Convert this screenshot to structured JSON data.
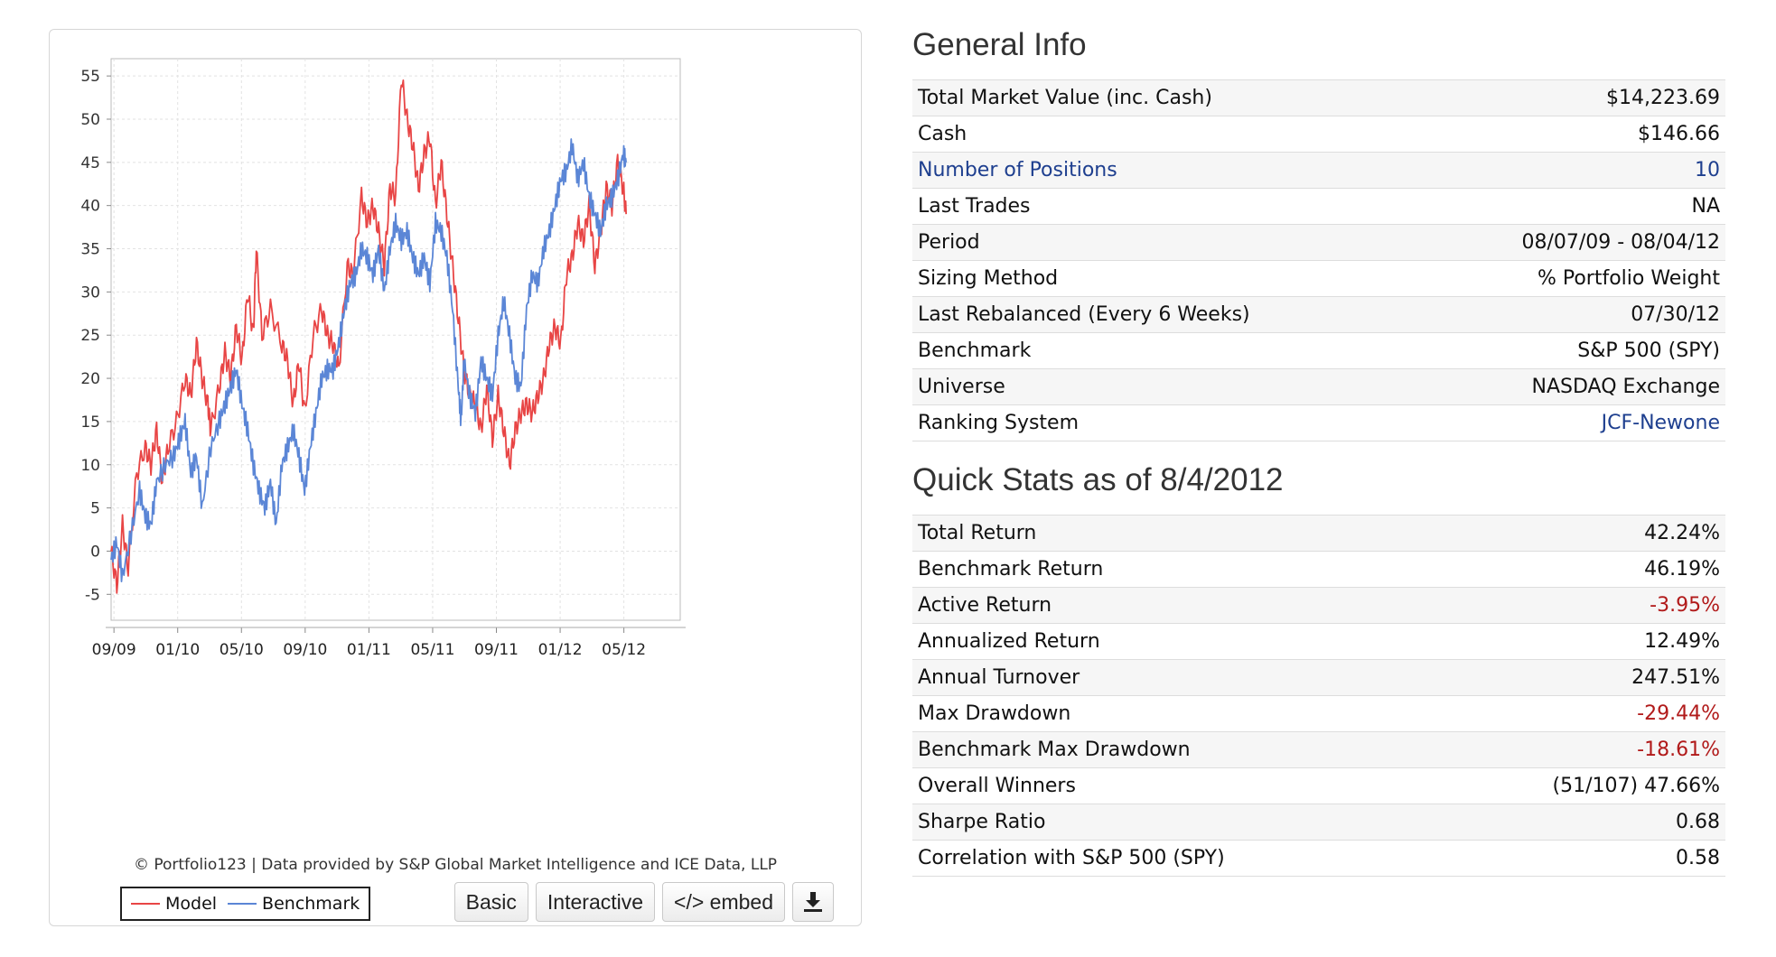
{
  "chart_panel": {
    "credit": "© Portfolio123 | Data provided by S&P Global Market Intelligence and ICE Data, LLP",
    "legend": {
      "model_label": "Model",
      "benchmark_label": "Benchmark"
    },
    "buttons": {
      "basic": "Basic",
      "interactive": "Interactive",
      "embed": "</> embed",
      "download_icon": "download-icon"
    }
  },
  "chart_data": {
    "type": "line",
    "x_tick_labels": [
      "09/09",
      "01/10",
      "05/10",
      "09/10",
      "01/11",
      "05/11",
      "09/11",
      "01/12",
      "05/12"
    ],
    "y_ticks": [
      55,
      50,
      45,
      40,
      35,
      30,
      25,
      20,
      15,
      10,
      5,
      0,
      -5
    ],
    "ylim": [
      -8,
      57
    ],
    "x_range": [
      "08/07/09",
      "08/04/12"
    ],
    "grid": true,
    "legend_position": "bottom-left",
    "series": [
      {
        "name": "Model",
        "color": "#e84545",
        "points": [
          [
            0,
            0
          ],
          [
            0.01,
            -4
          ],
          [
            0.02,
            3
          ],
          [
            0.03,
            -2
          ],
          [
            0.045,
            9
          ],
          [
            0.06,
            12
          ],
          [
            0.07,
            10
          ],
          [
            0.08,
            14
          ],
          [
            0.09,
            8
          ],
          [
            0.1,
            12
          ],
          [
            0.115,
            15
          ],
          [
            0.13,
            20
          ],
          [
            0.14,
            18
          ],
          [
            0.15,
            24
          ],
          [
            0.16,
            20
          ],
          [
            0.17,
            17
          ],
          [
            0.175,
            14
          ],
          [
            0.19,
            19
          ],
          [
            0.2,
            23
          ],
          [
            0.21,
            20
          ],
          [
            0.22,
            26
          ],
          [
            0.23,
            22
          ],
          [
            0.24,
            30
          ],
          [
            0.25,
            25
          ],
          [
            0.255,
            35
          ],
          [
            0.265,
            25
          ],
          [
            0.28,
            28
          ],
          [
            0.3,
            24
          ],
          [
            0.31,
            22
          ],
          [
            0.32,
            17
          ],
          [
            0.33,
            22
          ],
          [
            0.34,
            16
          ],
          [
            0.355,
            25
          ],
          [
            0.37,
            28
          ],
          [
            0.38,
            25
          ],
          [
            0.39,
            24
          ],
          [
            0.4,
            21
          ],
          [
            0.415,
            33
          ],
          [
            0.425,
            32
          ],
          [
            0.44,
            41
          ],
          [
            0.45,
            38
          ],
          [
            0.46,
            40
          ],
          [
            0.47,
            37
          ],
          [
            0.48,
            33
          ],
          [
            0.49,
            42
          ],
          [
            0.5,
            41
          ],
          [
            0.51,
            55
          ],
          [
            0.52,
            50
          ],
          [
            0.53,
            47
          ],
          [
            0.54,
            42
          ],
          [
            0.55,
            46
          ],
          [
            0.56,
            48
          ],
          [
            0.57,
            40
          ],
          [
            0.58,
            45
          ],
          [
            0.59,
            39
          ],
          [
            0.6,
            33
          ],
          [
            0.61,
            27
          ],
          [
            0.62,
            21
          ],
          [
            0.63,
            18
          ],
          [
            0.64,
            17
          ],
          [
            0.65,
            14
          ],
          [
            0.66,
            19
          ],
          [
            0.67,
            13
          ],
          [
            0.68,
            18
          ],
          [
            0.69,
            14
          ],
          [
            0.7,
            10
          ],
          [
            0.71,
            14
          ],
          [
            0.72,
            16
          ],
          [
            0.73,
            17
          ],
          [
            0.74,
            16
          ],
          [
            0.75,
            18
          ],
          [
            0.76,
            20
          ],
          [
            0.77,
            24
          ],
          [
            0.78,
            26
          ],
          [
            0.79,
            24
          ],
          [
            0.8,
            32
          ],
          [
            0.81,
            34
          ],
          [
            0.82,
            38
          ],
          [
            0.83,
            36
          ],
          [
            0.84,
            40
          ],
          [
            0.85,
            33
          ],
          [
            0.86,
            37
          ],
          [
            0.87,
            42
          ],
          [
            0.88,
            40
          ],
          [
            0.89,
            45
          ],
          [
            0.9,
            42
          ],
          [
            0.905,
            39
          ]
        ]
      },
      {
        "name": "Benchmark",
        "color": "#5b86d6",
        "points": [
          [
            0,
            -1
          ],
          [
            0.01,
            1
          ],
          [
            0.02,
            -3
          ],
          [
            0.035,
            2
          ],
          [
            0.05,
            7
          ],
          [
            0.06,
            4
          ],
          [
            0.07,
            3
          ],
          [
            0.08,
            8
          ],
          [
            0.095,
            10
          ],
          [
            0.11,
            11
          ],
          [
            0.12,
            13
          ],
          [
            0.13,
            15
          ],
          [
            0.14,
            9
          ],
          [
            0.15,
            11
          ],
          [
            0.16,
            5
          ],
          [
            0.175,
            12
          ],
          [
            0.19,
            15
          ],
          [
            0.2,
            17
          ],
          [
            0.21,
            19
          ],
          [
            0.22,
            21
          ],
          [
            0.23,
            17
          ],
          [
            0.24,
            14
          ],
          [
            0.25,
            10
          ],
          [
            0.26,
            7
          ],
          [
            0.27,
            5
          ],
          [
            0.28,
            8
          ],
          [
            0.29,
            3
          ],
          [
            0.3,
            10
          ],
          [
            0.31,
            12
          ],
          [
            0.32,
            14
          ],
          [
            0.33,
            11
          ],
          [
            0.34,
            7
          ],
          [
            0.35,
            12
          ],
          [
            0.36,
            16
          ],
          [
            0.37,
            20
          ],
          [
            0.38,
            21
          ],
          [
            0.39,
            21
          ],
          [
            0.4,
            24
          ],
          [
            0.41,
            28
          ],
          [
            0.42,
            31
          ],
          [
            0.43,
            32
          ],
          [
            0.44,
            35
          ],
          [
            0.45,
            34
          ],
          [
            0.46,
            32
          ],
          [
            0.47,
            35
          ],
          [
            0.48,
            30
          ],
          [
            0.49,
            35
          ],
          [
            0.5,
            38
          ],
          [
            0.51,
            36
          ],
          [
            0.52,
            37
          ],
          [
            0.53,
            34
          ],
          [
            0.54,
            32
          ],
          [
            0.55,
            34
          ],
          [
            0.56,
            31
          ],
          [
            0.57,
            38
          ],
          [
            0.58,
            37
          ],
          [
            0.59,
            34
          ],
          [
            0.6,
            28
          ],
          [
            0.61,
            19
          ],
          [
            0.615,
            15
          ],
          [
            0.62,
            22
          ],
          [
            0.63,
            18
          ],
          [
            0.64,
            16
          ],
          [
            0.65,
            22
          ],
          [
            0.66,
            20
          ],
          [
            0.67,
            18
          ],
          [
            0.68,
            25
          ],
          [
            0.69,
            29
          ],
          [
            0.7,
            25
          ],
          [
            0.71,
            20
          ],
          [
            0.72,
            19
          ],
          [
            0.73,
            28
          ],
          [
            0.74,
            32
          ],
          [
            0.75,
            31
          ],
          [
            0.76,
            35
          ],
          [
            0.77,
            37
          ],
          [
            0.78,
            40
          ],
          [
            0.79,
            43
          ],
          [
            0.8,
            44
          ],
          [
            0.81,
            47
          ],
          [
            0.82,
            43
          ],
          [
            0.83,
            45
          ],
          [
            0.84,
            41
          ],
          [
            0.85,
            39
          ],
          [
            0.86,
            37
          ],
          [
            0.87,
            40
          ],
          [
            0.88,
            41
          ],
          [
            0.89,
            43
          ],
          [
            0.9,
            46
          ],
          [
            0.905,
            45
          ]
        ]
      }
    ]
  },
  "general_info": {
    "title": "General Info",
    "rows": [
      {
        "label": "Total Market Value (inc. Cash)",
        "value": "$14,223.69"
      },
      {
        "label": "Cash",
        "value": "$146.66"
      },
      {
        "label": "Number of Positions",
        "value": "10",
        "link": true
      },
      {
        "label": "Last Trades",
        "value": "NA"
      },
      {
        "label": "Period",
        "value": "08/07/09 - 08/04/12"
      },
      {
        "label": "Sizing Method",
        "value": "% Portfolio Weight"
      },
      {
        "label": "Last Rebalanced (Every 6 Weeks)",
        "value": "07/30/12"
      },
      {
        "label": "Benchmark",
        "value": "S&P 500 (SPY)"
      },
      {
        "label": "Universe",
        "value": "NASDAQ Exchange"
      },
      {
        "label": "Ranking System",
        "value": "JCF-Newone",
        "value_link": true
      }
    ]
  },
  "quick_stats": {
    "title": "Quick Stats as of 8/4/2012",
    "rows": [
      {
        "label": "Total Return",
        "value": "42.24%"
      },
      {
        "label": "Benchmark Return",
        "value": "46.19%"
      },
      {
        "label": "Active Return",
        "value": "-3.95%",
        "negative": true
      },
      {
        "label": "Annualized Return",
        "value": "12.49%"
      },
      {
        "label": "Annual Turnover",
        "value": "247.51%"
      },
      {
        "label": "Max Drawdown",
        "value": "-29.44%",
        "negative": true
      },
      {
        "label": "Benchmark Max Drawdown",
        "value": "-18.61%",
        "negative": true
      },
      {
        "label": "Overall Winners",
        "value": "(51/107) 47.66%"
      },
      {
        "label": "Sharpe Ratio",
        "value": "0.68"
      },
      {
        "label": "Correlation with S&P 500 (SPY)",
        "value": "0.58"
      }
    ]
  },
  "colors": {
    "negative": "#b11a1a",
    "link": "#1e3f8f"
  }
}
